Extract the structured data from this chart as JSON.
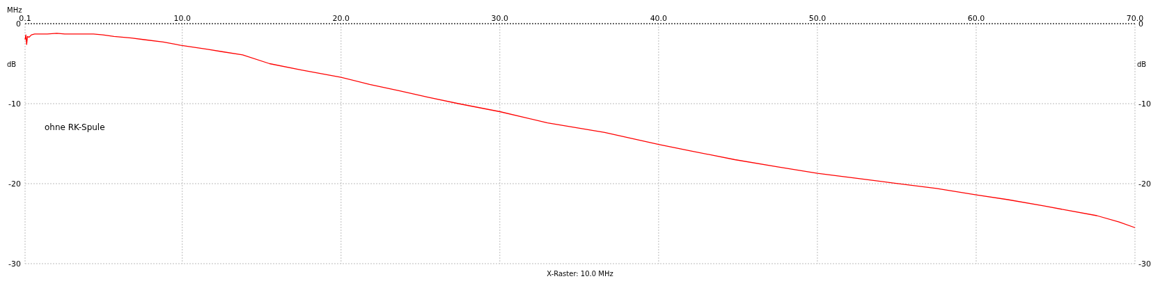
{
  "chart_data": {
    "type": "line",
    "xlabel": "MHz",
    "ylabel": "dB",
    "y2label": "dB",
    "annotations": [
      "ohne RK-Spule",
      "X-Raster: 10.0 MHz"
    ],
    "series": [
      {
        "color": "#ff0000",
        "x": [
          0.1,
          0.15,
          0.2,
          0.25,
          0.35,
          0.5,
          0.7,
          1.0,
          1.5,
          2.1,
          2.6,
          3.5,
          4.4,
          5.0,
          5.7,
          6.8,
          7.6,
          8.8,
          9.9,
          11.6,
          12.5,
          13.8,
          15.5,
          17.5,
          20.0,
          21.8,
          23.7,
          25.5,
          27.4,
          30.0,
          33.0,
          36.6,
          40.0,
          42.0,
          44.8,
          47.5,
          50.0,
          54.7,
          57.5,
          60.0,
          62.0,
          64.3,
          67.6,
          69.0,
          70.0
        ],
        "values": [
          -2.0,
          -1.4,
          -2.6,
          -1.6,
          -1.7,
          -1.4,
          -1.3,
          -1.3,
          -1.3,
          -1.2,
          -1.3,
          -1.3,
          -1.3,
          -1.4,
          -1.6,
          -1.8,
          -2.0,
          -2.3,
          -2.7,
          -3.2,
          -3.5,
          -3.9,
          -5.0,
          -5.8,
          -6.7,
          -7.6,
          -8.4,
          -9.2,
          -10.0,
          -11.0,
          -12.4,
          -13.6,
          -15.1,
          -15.9,
          -17.0,
          -17.9,
          -18.7,
          -19.9,
          -20.6,
          -21.4,
          -22.0,
          -22.8,
          -24.0,
          -24.8,
          -25.5
        ]
      }
    ],
    "xlim": [
      0.1,
      70
    ],
    "xticks": [
      0.1,
      {
        "value": 10,
        "label": "10.0"
      },
      {
        "value": 20,
        "label": "20.0"
      },
      {
        "value": 30,
        "label": "30.0"
      },
      {
        "value": 40,
        "label": "40.0"
      },
      {
        "value": 50,
        "label": "50.0"
      },
      {
        "value": 60,
        "label": "60.0"
      },
      {
        "value": 70,
        "label": "70.0"
      }
    ],
    "ylim": [
      -30,
      0
    ],
    "yticks": [
      0,
      -10,
      -20,
      -30
    ],
    "y2lim": [
      -30,
      0
    ],
    "y2ticks": [
      0,
      -10,
      -20,
      -30
    ],
    "grid": true,
    "marker": "none",
    "line_style": "solid"
  }
}
